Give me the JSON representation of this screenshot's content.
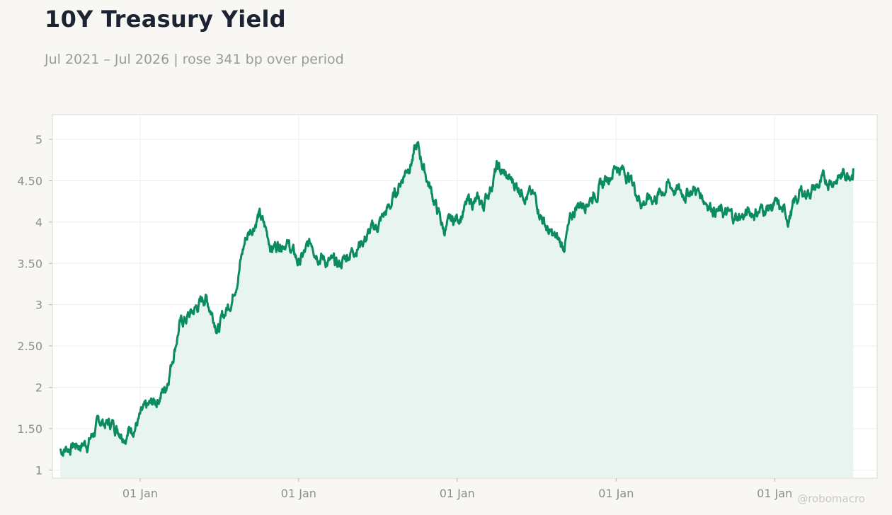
{
  "header": {
    "title": "10Y Treasury Yield",
    "subtitle": "Jul 2021 – Jul 2026 | rose 341 bp over period"
  },
  "watermark": "@robomacro",
  "colors": {
    "line": "#0a8c5f",
    "fill": "#e6f3ee",
    "background": "#f8f7f4",
    "plot": "#ffffff"
  },
  "chart_data": {
    "type": "area",
    "title": "10Y Treasury Yield",
    "xlabel": "",
    "ylabel": "",
    "ylim": [
      0.9,
      5.3
    ],
    "yticks": [
      "1",
      "1.50",
      "2",
      "2.50",
      "3",
      "3.50",
      "4",
      "4.50",
      "5"
    ],
    "yticks_values": [
      1,
      1.5,
      2,
      2.5,
      3,
      3.5,
      4,
      4.5,
      5
    ],
    "xticks": [
      "01 Jan",
      "01 Jan",
      "01 Jan",
      "01 Jan",
      "01 Jan"
    ],
    "xticks_values": [
      "2022-01-01",
      "2023-01-01",
      "2024-01-01",
      "2025-01-01",
      "2026-01-01"
    ],
    "xlim": [
      "2021-06-13",
      "2026-08-25"
    ],
    "grid": true,
    "series": [
      {
        "x": [
          "2021-07-01",
          "2021-08-01",
          "2021-09-01",
          "2021-10-01",
          "2021-11-01",
          "2021-12-01",
          "2022-01-01",
          "2022-02-01",
          "2022-03-01",
          "2022-04-01",
          "2022-05-01",
          "2022-06-01",
          "2022-07-01",
          "2022-08-01",
          "2022-09-01",
          "2022-10-01",
          "2022-11-01",
          "2022-12-01",
          "2023-01-01",
          "2023-02-01",
          "2023-03-01",
          "2023-04-01",
          "2023-05-01",
          "2023-06-01",
          "2023-07-01",
          "2023-08-01",
          "2023-09-01",
          "2023-10-01",
          "2023-11-01",
          "2023-12-01",
          "2024-01-01",
          "2024-02-01",
          "2024-03-01",
          "2024-04-01",
          "2024-05-01",
          "2024-06-01",
          "2024-07-01",
          "2024-08-01",
          "2024-09-01",
          "2024-10-01",
          "2024-11-01",
          "2024-12-01",
          "2025-01-01",
          "2025-02-01",
          "2025-03-01",
          "2025-04-01",
          "2025-05-01",
          "2025-06-01",
          "2025-07-01",
          "2025-08-01",
          "2025-09-01",
          "2025-10-01",
          "2025-11-01",
          "2025-12-01",
          "2026-01-01",
          "2026-02-01",
          "2026-03-01",
          "2026-04-01",
          "2026-05-01",
          "2026-06-01",
          "2026-07-01"
        ],
        "values": [
          1.24,
          1.3,
          1.33,
          1.58,
          1.55,
          1.45,
          1.63,
          1.8,
          2.0,
          2.75,
          2.9,
          3.1,
          2.72,
          3.1,
          3.8,
          4.1,
          3.7,
          3.8,
          3.5,
          3.75,
          3.55,
          3.45,
          3.65,
          3.8,
          3.95,
          4.2,
          4.6,
          4.9,
          4.4,
          3.9,
          4.05,
          4.25,
          4.2,
          4.65,
          4.5,
          4.4,
          4.25,
          3.85,
          3.7,
          4.2,
          4.3,
          4.45,
          4.7,
          4.55,
          4.25,
          4.3,
          4.45,
          4.35,
          4.4,
          4.25,
          4.1,
          4.05,
          4.1,
          4.15,
          4.2,
          4.05,
          4.35,
          4.4,
          4.5,
          4.55,
          4.65
        ]
      }
    ]
  }
}
